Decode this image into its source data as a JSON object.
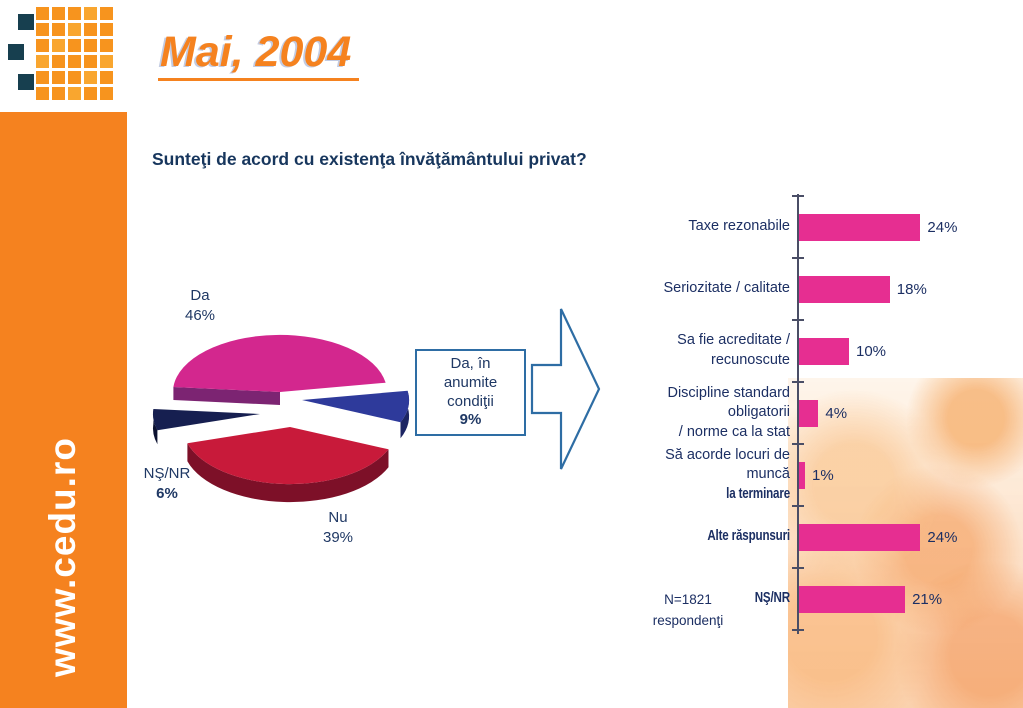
{
  "sidebar": {
    "url": "www.cedu.ro"
  },
  "header": {
    "title": "Mai, 2004"
  },
  "question": "Sunteţi de acord cu existenţa învăţământului privat?",
  "colors": {
    "orange": "#f5821f",
    "bar_magenta": "#e62e91",
    "navy_text": "#1f3864",
    "pie_da": "#d3278e",
    "pie_nu": "#c81a3a",
    "pie_nsnr": "#161f50",
    "pie_conditional": "#2e3a9b",
    "arrow_outline": "#2e6da4"
  },
  "pie_labels": {
    "da": {
      "name": "Da",
      "value": "46%"
    },
    "nu": {
      "name": "Nu",
      "value": "39%"
    },
    "nsnr": {
      "name": "NŞ/NR",
      "value": "6%"
    },
    "conditional": {
      "lines": [
        "Da, în",
        "anumite",
        "condiţii"
      ],
      "value": "9%"
    }
  },
  "chart_data": [
    {
      "type": "pie",
      "title": "Sunteţi de acord cu existenţa învăţământului privat?",
      "labels": [
        "Da",
        "Nu",
        "NŞ/NR",
        "Da, în anumite condiţii"
      ],
      "values": [
        46,
        39,
        6,
        9
      ],
      "colors": [
        "#d3278e",
        "#c81a3a",
        "#161f50",
        "#2e3a9b"
      ]
    },
    {
      "type": "bar",
      "orientation": "horizontal",
      "categories": [
        "Taxe rezonabile",
        "Seriozitate / calitate",
        "Sa fie acreditate / recunoscute",
        "Discipline standard obligatorii / norme ca la stat",
        "Să acorde locuri de muncă la terminare",
        "Alte răspunsuri",
        "NŞ/NR"
      ],
      "values": [
        24,
        18,
        10,
        4,
        1,
        24,
        21
      ],
      "value_labels": [
        "24%",
        "18%",
        "10%",
        "4%",
        "1%",
        "24%",
        "21%"
      ],
      "xlim": [
        0,
        30
      ],
      "bar_color": "#e62e91",
      "note_lines": [
        "N=1821",
        "respondenţi"
      ],
      "rows": [
        {
          "lines": [
            "Taxe rezonabile"
          ],
          "value": 24,
          "label": "24%"
        },
        {
          "lines": [
            "Seriozitate / calitate"
          ],
          "value": 18,
          "label": "18%"
        },
        {
          "lines": [
            "Sa fie acreditate /",
            "recunoscute"
          ],
          "value": 10,
          "label": "10%"
        },
        {
          "lines": [
            "Discipline standard obligatorii",
            "/ norme ca la stat"
          ],
          "value": 4,
          "label": "4%"
        },
        {
          "lines": [
            "Să acorde locuri de muncă",
            "la terminare"
          ],
          "value": 1,
          "label": "1%",
          "bold_lines": [
            1
          ]
        },
        {
          "lines": [
            "Alte răspunsuri"
          ],
          "value": 24,
          "label": "24%",
          "bold_lines": [
            0
          ]
        },
        {
          "lines": [
            "NŞ/NR"
          ],
          "value": 21,
          "label": "21%",
          "bold_lines": [
            0
          ]
        }
      ]
    }
  ]
}
